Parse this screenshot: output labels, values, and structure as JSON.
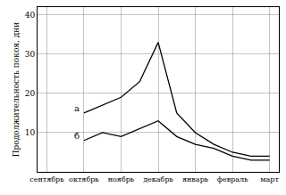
{
  "chart_data": {
    "type": "line",
    "y_label": "Продолжительность покоя, дни",
    "categories": [
      "сентябрь",
      null,
      "октябрь",
      null,
      "ноябрь",
      null,
      "декабрь",
      null,
      "январь",
      null,
      "февраль",
      null,
      "март"
    ],
    "series": [
      {
        "name": "а",
        "color": "#000000",
        "values": [
          null,
          null,
          15,
          17,
          19,
          23,
          33,
          15,
          10,
          7,
          5,
          4,
          4
        ]
      },
      {
        "name": "б",
        "color": "#000000",
        "values": [
          null,
          null,
          8,
          10,
          9,
          11,
          13,
          9,
          7,
          6,
          4,
          3,
          3
        ]
      }
    ],
    "ylim": [
      0,
      42
    ],
    "yticks": [
      10,
      20,
      30,
      40
    ],
    "grid": true
  }
}
